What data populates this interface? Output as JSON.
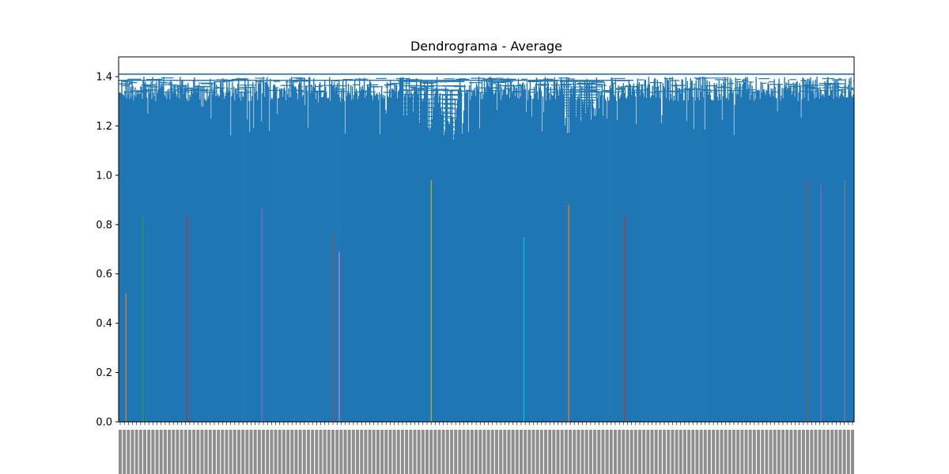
{
  "chart_data": {
    "type": "dendrogram",
    "title": "Dendrograma - Average",
    "xlabel": "",
    "ylabel": "",
    "ylim": [
      0,
      1.48
    ],
    "y_ticks": [
      0.0,
      0.2,
      0.4,
      0.6,
      0.8,
      1.0,
      1.2,
      1.4
    ],
    "y_tick_labels": [
      "0.0",
      "0.2",
      "0.4",
      "0.6",
      "0.8",
      "1.0",
      "1.2",
      "1.4"
    ],
    "grid": false,
    "legend": "none",
    "main_color": "#1f77b4",
    "root_height": 1.41,
    "leaf_labels_legible": false,
    "colored_clusters": [
      {
        "leaf_fraction": 0.01,
        "height": 0.52,
        "color": "#ff7f0e"
      },
      {
        "leaf_fraction": 0.033,
        "height": 0.83,
        "color": "#2ca02c"
      },
      {
        "leaf_fraction": 0.093,
        "height": 0.84,
        "color": "#d62728"
      },
      {
        "leaf_fraction": 0.195,
        "height": 0.87,
        "color": "#9467bd"
      },
      {
        "leaf_fraction": 0.292,
        "height": 0.77,
        "color": "#8c564b"
      },
      {
        "leaf_fraction": 0.3,
        "height": 0.69,
        "color": "#e377c2"
      },
      {
        "leaf_fraction": 0.425,
        "height": 0.98,
        "color": "#bcbd22"
      },
      {
        "leaf_fraction": 0.551,
        "height": 0.75,
        "color": "#17becf"
      },
      {
        "leaf_fraction": 0.612,
        "height": 0.88,
        "color": "#ff7f0e"
      },
      {
        "leaf_fraction": 0.688,
        "height": 0.84,
        "color": "#d62728"
      },
      {
        "leaf_fraction": 0.937,
        "height": 0.98,
        "color": "#8c564b"
      },
      {
        "leaf_fraction": 0.955,
        "height": 0.96,
        "color": "#9467bd"
      },
      {
        "leaf_fraction": 0.987,
        "height": 0.98,
        "color": "#7f7f7f"
      }
    ]
  }
}
